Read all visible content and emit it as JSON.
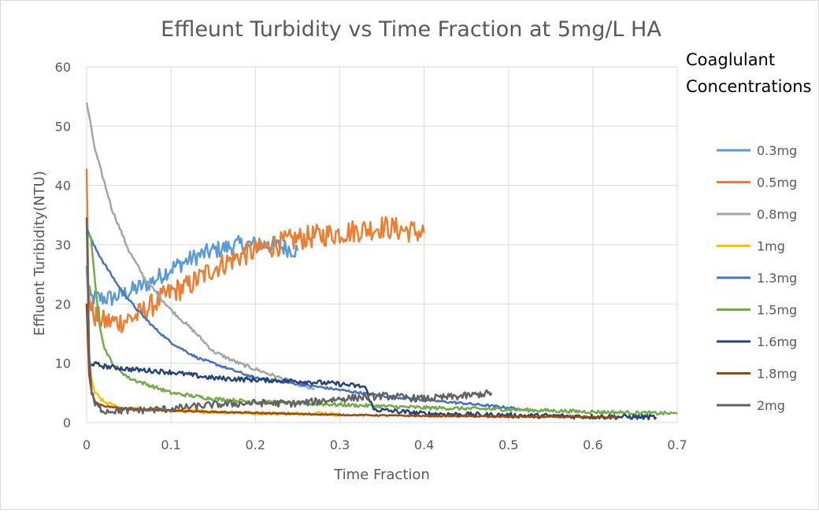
{
  "chart_data": {
    "type": "line",
    "title": "Effleunt Turbidity vs Time Fraction at 5mg/L HA",
    "xlabel": "Time Fraction",
    "ylabel": "Effluent Turibidity(NTU)",
    "xlim": [
      0,
      0.7
    ],
    "ylim": [
      0,
      60
    ],
    "x_ticks": [
      "0",
      "0.1",
      "0.2",
      "0.3",
      "0.4",
      "0.5",
      "0.6",
      "0.7"
    ],
    "y_ticks": [
      "0",
      "10",
      "20",
      "30",
      "40",
      "50",
      "60"
    ],
    "grid": true,
    "legend_title_lines": [
      "Coaglulant",
      "Concentrations"
    ],
    "legend_position": "right",
    "series": [
      {
        "name": "0.3mg",
        "color": "#5b9bd5",
        "noise": 1.5,
        "x": [
          0,
          0.002,
          0.005,
          0.01,
          0.03,
          0.05,
          0.08,
          0.1,
          0.13,
          0.15,
          0.18,
          0.2,
          0.22,
          0.25
        ],
        "y": [
          26,
          22,
          21,
          21,
          21,
          22,
          24,
          26,
          28,
          29,
          30,
          30,
          30,
          29
        ]
      },
      {
        "name": "0.5mg",
        "color": "#ed7d31",
        "noise": 2.0,
        "x": [
          0,
          0.002,
          0.005,
          0.01,
          0.02,
          0.04,
          0.06,
          0.08,
          0.1,
          0.12,
          0.15,
          0.18,
          0.2,
          0.25,
          0.3,
          0.35,
          0.4
        ],
        "y": [
          42,
          24,
          19,
          18,
          17,
          17,
          18,
          20,
          22,
          23,
          26,
          28,
          29,
          31,
          32,
          33,
          32
        ]
      },
      {
        "name": "0.8mg",
        "color": "#a5a5a5",
        "noise": 0.3,
        "x": [
          0,
          0.005,
          0.01,
          0.02,
          0.03,
          0.05,
          0.07,
          0.1,
          0.13,
          0.15,
          0.18,
          0.2,
          0.22,
          0.25,
          0.27
        ],
        "y": [
          54,
          50,
          46,
          41,
          36,
          29,
          24,
          19,
          15,
          12,
          10,
          9,
          8,
          6.5,
          5.5
        ]
      },
      {
        "name": "1mg",
        "color": "#ffc000",
        "noise": 0.3,
        "x": [
          0,
          0.003,
          0.006,
          0.01,
          0.02,
          0.04,
          0.07,
          0.1,
          0.15,
          0.2,
          0.25,
          0.28,
          0.3
        ],
        "y": [
          20,
          10,
          7,
          5,
          3.5,
          2.5,
          2.2,
          2,
          1.8,
          1.6,
          1.5,
          1.6,
          1.3
        ]
      },
      {
        "name": "1.3mg",
        "color": "#4472c4",
        "noise": 0.2,
        "x": [
          0,
          0.005,
          0.01,
          0.02,
          0.04,
          0.06,
          0.08,
          0.1,
          0.13,
          0.16,
          0.2,
          0.25,
          0.3,
          0.35,
          0.4,
          0.45,
          0.5,
          0.51
        ],
        "y": [
          33,
          31,
          29.5,
          27,
          22.5,
          19,
          16,
          13.5,
          11,
          9.5,
          7.5,
          6.5,
          5.5,
          4.5,
          3.8,
          3.2,
          2.5,
          2.4
        ]
      },
      {
        "name": "1.5mg",
        "color": "#70ad47",
        "noise": 0.3,
        "x": [
          0,
          0.005,
          0.01,
          0.015,
          0.02,
          0.03,
          0.05,
          0.08,
          0.1,
          0.15,
          0.2,
          0.3,
          0.4,
          0.5,
          0.6,
          0.7
        ],
        "y": [
          32,
          31,
          24,
          17,
          13,
          10,
          7.5,
          6,
          5,
          4,
          3.5,
          3,
          2.5,
          2.2,
          1.8,
          1.5
        ]
      },
      {
        "name": "1.6mg",
        "color": "#264478",
        "noise": 0.4,
        "x": [
          0.005,
          0.02,
          0.05,
          0.1,
          0.15,
          0.2,
          0.25,
          0.3,
          0.33,
          0.34,
          0.4,
          0.5,
          0.6,
          0.675
        ],
        "y": [
          10,
          9.5,
          9,
          8.5,
          7.5,
          7.2,
          7,
          6.5,
          6,
          2.2,
          1.5,
          1.2,
          1,
          0.9
        ]
      },
      {
        "name": "1.8mg",
        "color": "#9e480e",
        "noise": 0.1,
        "x": [
          0,
          0.003,
          0.006,
          0.01,
          0.02,
          0.05,
          0.1,
          0.2,
          0.3,
          0.4,
          0.5,
          0.6,
          0.63
        ],
        "y": [
          20,
          8,
          5,
          3.5,
          2.8,
          2.3,
          2,
          1.6,
          1.3,
          1.1,
          1,
          0.9,
          0.9
        ]
      },
      {
        "name": "2mg",
        "color": "#636363",
        "noise": 0.6,
        "x": [
          0,
          0.003,
          0.006,
          0.01,
          0.02,
          0.05,
          0.1,
          0.15,
          0.2,
          0.25,
          0.3,
          0.35,
          0.4,
          0.45,
          0.48
        ],
        "y": [
          35,
          12,
          5,
          3,
          2,
          2,
          2.3,
          3,
          3.3,
          3.2,
          4,
          4.5,
          4,
          4.5,
          5
        ]
      }
    ]
  }
}
